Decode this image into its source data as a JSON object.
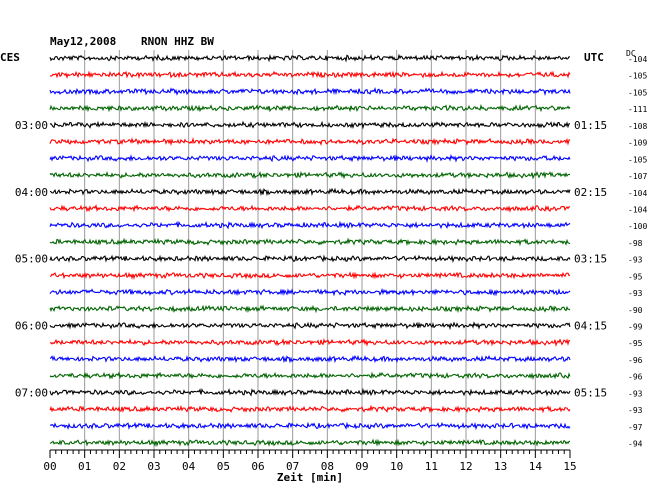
{
  "header": {
    "date": "May12,2008",
    "station": "RNON HHZ BW",
    "left_zone": "CES",
    "right_zone": "UTC",
    "dc_label": "DC"
  },
  "chart_data": {
    "type": "line",
    "xlabel": "Zeit [min]",
    "xlim": [
      0,
      15
    ],
    "x_ticks": [
      "00",
      "01",
      "02",
      "03",
      "04",
      "05",
      "06",
      "07",
      "08",
      "09",
      "10",
      "11",
      "12",
      "13",
      "14",
      "15"
    ],
    "trace_count": 24,
    "trace_colors": [
      "#000000",
      "#ff0000",
      "#0000ff",
      "#006400"
    ],
    "left_hour_labels": [
      "03:00",
      "04:00",
      "05:00",
      "06:00",
      "07:00"
    ],
    "right_hour_labels": [
      "01:15",
      "02:15",
      "03:15",
      "04:15",
      "05:15"
    ],
    "hour_label_trace_index": [
      4,
      8,
      12,
      16,
      20
    ],
    "dc_offsets": [
      "-104",
      "-105",
      "-105",
      "-111",
      "-108",
      "-109",
      "-105",
      "-107",
      "-104",
      "-104",
      "-100",
      "-98",
      "-93",
      "-95",
      "-93",
      "-90",
      "-99",
      "-95",
      "-96",
      "-96",
      "-93",
      "-93",
      "-97",
      "-94"
    ],
    "grid": "vertical-minutes"
  }
}
